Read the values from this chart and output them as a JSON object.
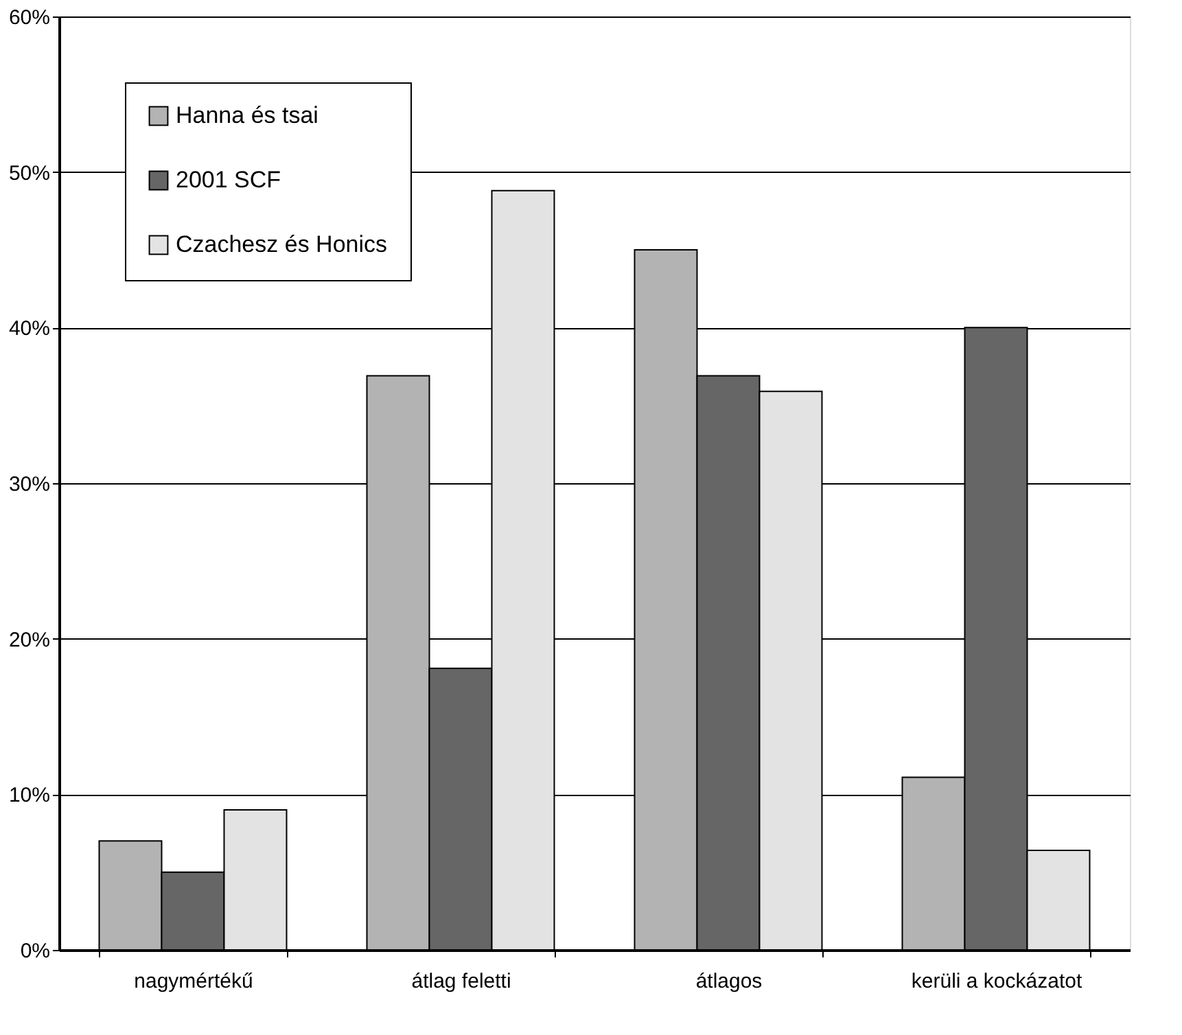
{
  "chart_data": {
    "type": "bar",
    "categories": [
      "nagymértékű",
      "átlag feletti",
      "átlagos",
      "kerüli a kockázatot"
    ],
    "series": [
      {
        "name": "Hanna és tsai",
        "color": "#b3b3b3",
        "values": [
          7.0,
          36.9,
          45.0,
          11.1
        ]
      },
      {
        "name": "2001 SCF",
        "color": "#666666",
        "values": [
          5.0,
          18.1,
          36.9,
          40.0
        ]
      },
      {
        "name": "Czachesz és Honics",
        "color": "#e3e3e3",
        "values": [
          9.0,
          48.8,
          35.9,
          6.4
        ]
      }
    ],
    "ylim": [
      0,
      60
    ],
    "yticks": [
      {
        "value": 0,
        "label": "0%"
      },
      {
        "value": 10,
        "label": "10%"
      },
      {
        "value": 20,
        "label": "20%"
      },
      {
        "value": 30,
        "label": "30%"
      },
      {
        "value": 40,
        "label": "40%"
      },
      {
        "value": 50,
        "label": "50%"
      },
      {
        "value": 60,
        "label": "60%"
      }
    ],
    "grid": "y",
    "legend": "top left"
  }
}
